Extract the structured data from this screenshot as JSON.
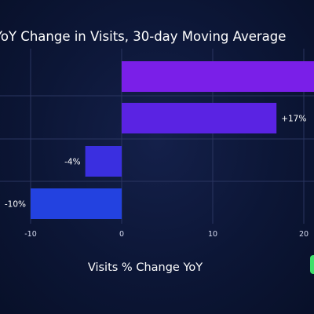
{
  "chart_data": {
    "type": "bar",
    "orientation": "horizontal",
    "title": "YoY Change in Visits, 30-day Moving Average",
    "xlabel": "Visits % Change YoY",
    "ylabel": "",
    "xlim": [
      -14,
      22
    ],
    "x_ticks": [
      "-10",
      "0",
      "10",
      "20"
    ],
    "grid": true,
    "bars": [
      {
        "value": 22,
        "label": "",
        "color": "#7a1fe8"
      },
      {
        "value": 17,
        "label": "+17%",
        "color": "#5a23e3"
      },
      {
        "value": -4,
        "label": "-4%",
        "color": "#3a2fe0"
      },
      {
        "value": -10,
        "label": "-10%",
        "color": "#2342e0"
      }
    ]
  },
  "colors": {
    "background": "#0c1636",
    "grid": "#2a3560",
    "text": "#ffffff",
    "badge": "#3fe06b"
  }
}
